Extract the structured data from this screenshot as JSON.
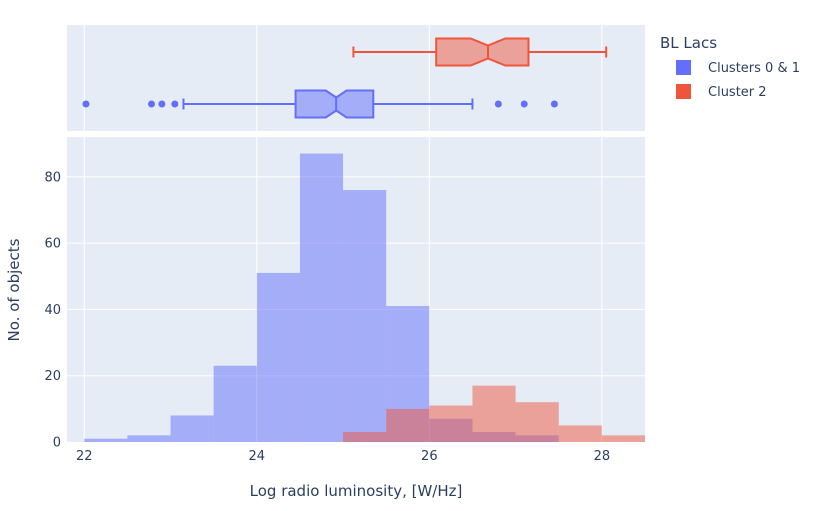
{
  "chart_data": {
    "type": "bar",
    "subtype": "histogram-with-marginal-boxplot",
    "xlabel": "Log radio luminosity, [W/Hz]",
    "ylabel": "No. of objects",
    "xlim": [
      21.8,
      28.5
    ],
    "ylim": [
      0,
      92
    ],
    "x_ticks": [
      22,
      24,
      26,
      28
    ],
    "y_ticks": [
      0,
      20,
      40,
      60,
      80
    ],
    "grid": true,
    "legend": {
      "title": "BL Lacs",
      "placement": "top-right"
    },
    "colors": {
      "background": "#e5ecf6",
      "grid": "#ffffff",
      "text": "#2a3f5f"
    },
    "series": [
      {
        "name": "Clusters 0 & 1",
        "color": "#636efa",
        "bins": [
          {
            "x0": 22.0,
            "x1": 22.5,
            "count": 1
          },
          {
            "x0": 22.5,
            "x1": 23.0,
            "count": 2
          },
          {
            "x0": 23.0,
            "x1": 23.5,
            "count": 8
          },
          {
            "x0": 23.5,
            "x1": 24.0,
            "count": 23
          },
          {
            "x0": 24.0,
            "x1": 24.5,
            "count": 51
          },
          {
            "x0": 24.5,
            "x1": 25.0,
            "count": 87
          },
          {
            "x0": 25.0,
            "x1": 25.5,
            "count": 76
          },
          {
            "x0": 25.5,
            "x1": 26.0,
            "count": 41
          },
          {
            "x0": 26.0,
            "x1": 26.5,
            "count": 7
          },
          {
            "x0": 26.5,
            "x1": 27.0,
            "count": 3
          },
          {
            "x0": 27.0,
            "x1": 27.5,
            "count": 2
          }
        ],
        "box": {
          "lowerfence": 23.15,
          "q1": 24.45,
          "median": 24.92,
          "q3": 25.35,
          "upperfence": 26.5,
          "notch_low": 24.8,
          "notch_high": 25.04,
          "outliers": [
            22.02,
            22.78,
            22.9,
            23.05,
            26.8,
            27.1,
            27.45
          ]
        }
      },
      {
        "name": "Cluster 2",
        "color": "#ef553b",
        "bins": [
          {
            "x0": 25.0,
            "x1": 25.5,
            "count": 3
          },
          {
            "x0": 25.5,
            "x1": 26.0,
            "count": 10
          },
          {
            "x0": 26.0,
            "x1": 26.5,
            "count": 11
          },
          {
            "x0": 26.5,
            "x1": 27.0,
            "count": 17
          },
          {
            "x0": 27.0,
            "x1": 27.5,
            "count": 12
          },
          {
            "x0": 27.5,
            "x1": 28.0,
            "count": 5
          },
          {
            "x0": 28.0,
            "x1": 28.5,
            "count": 2
          }
        ],
        "box": {
          "lowerfence": 25.12,
          "q1": 26.08,
          "median": 26.68,
          "q3": 27.15,
          "upperfence": 28.05,
          "notch_low": 26.48,
          "notch_high": 26.88,
          "outliers": []
        }
      }
    ]
  }
}
